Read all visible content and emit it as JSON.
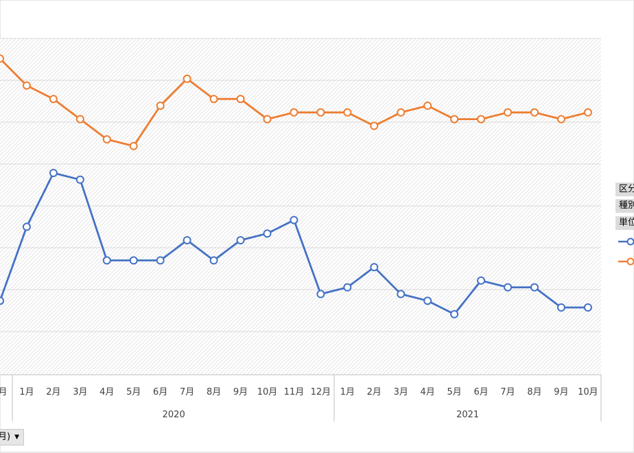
{
  "chart_data": {
    "type": "line",
    "grid": true,
    "legend_placement": "right",
    "x_tick_labels": [
      "月",
      "1月",
      "2月",
      "3月",
      "4月",
      "5月",
      "6月",
      "7月",
      "8月",
      "9月",
      "10月",
      "11月",
      "12月",
      "1月",
      "2月",
      "3月",
      "4月",
      "5月",
      "6月",
      "7月",
      "8月",
      "9月",
      "10月"
    ],
    "year_groups": [
      {
        "label": "2020",
        "span": [
          1,
          12
        ]
      },
      {
        "label": "2021",
        "span": [
          13,
          22
        ]
      }
    ],
    "series": [
      {
        "color": "#4472c4",
        "values": [
          -0.4,
          0.7,
          1.5,
          1.4,
          0.2,
          0.2,
          0.2,
          0.5,
          0.2,
          0.5,
          0.6,
          0.8,
          -0.3,
          -0.2,
          0.1,
          -0.3,
          -0.4,
          -0.6,
          -0.1,
          -0.2,
          -0.2,
          -0.5,
          -0.5
        ]
      },
      {
        "color": "#ed7d31",
        "values": [
          3.2,
          2.8,
          2.6,
          2.3,
          2.0,
          1.9,
          2.5,
          2.9,
          2.6,
          2.6,
          2.3,
          2.4,
          2.4,
          2.4,
          2.2,
          2.4,
          2.5,
          2.3,
          2.3,
          2.4,
          2.4,
          2.3,
          2.4
        ]
      }
    ]
  },
  "legend": {
    "tags": [
      "区分",
      "種別",
      "単位"
    ]
  },
  "filter": {
    "label": "月)"
  },
  "colors": {
    "series_blue": "#4472c4",
    "series_orange": "#ed7d31",
    "plot_grid": "#d9d9d9"
  },
  "icons": {
    "filter_dropdown": "triangle-down-icon"
  }
}
